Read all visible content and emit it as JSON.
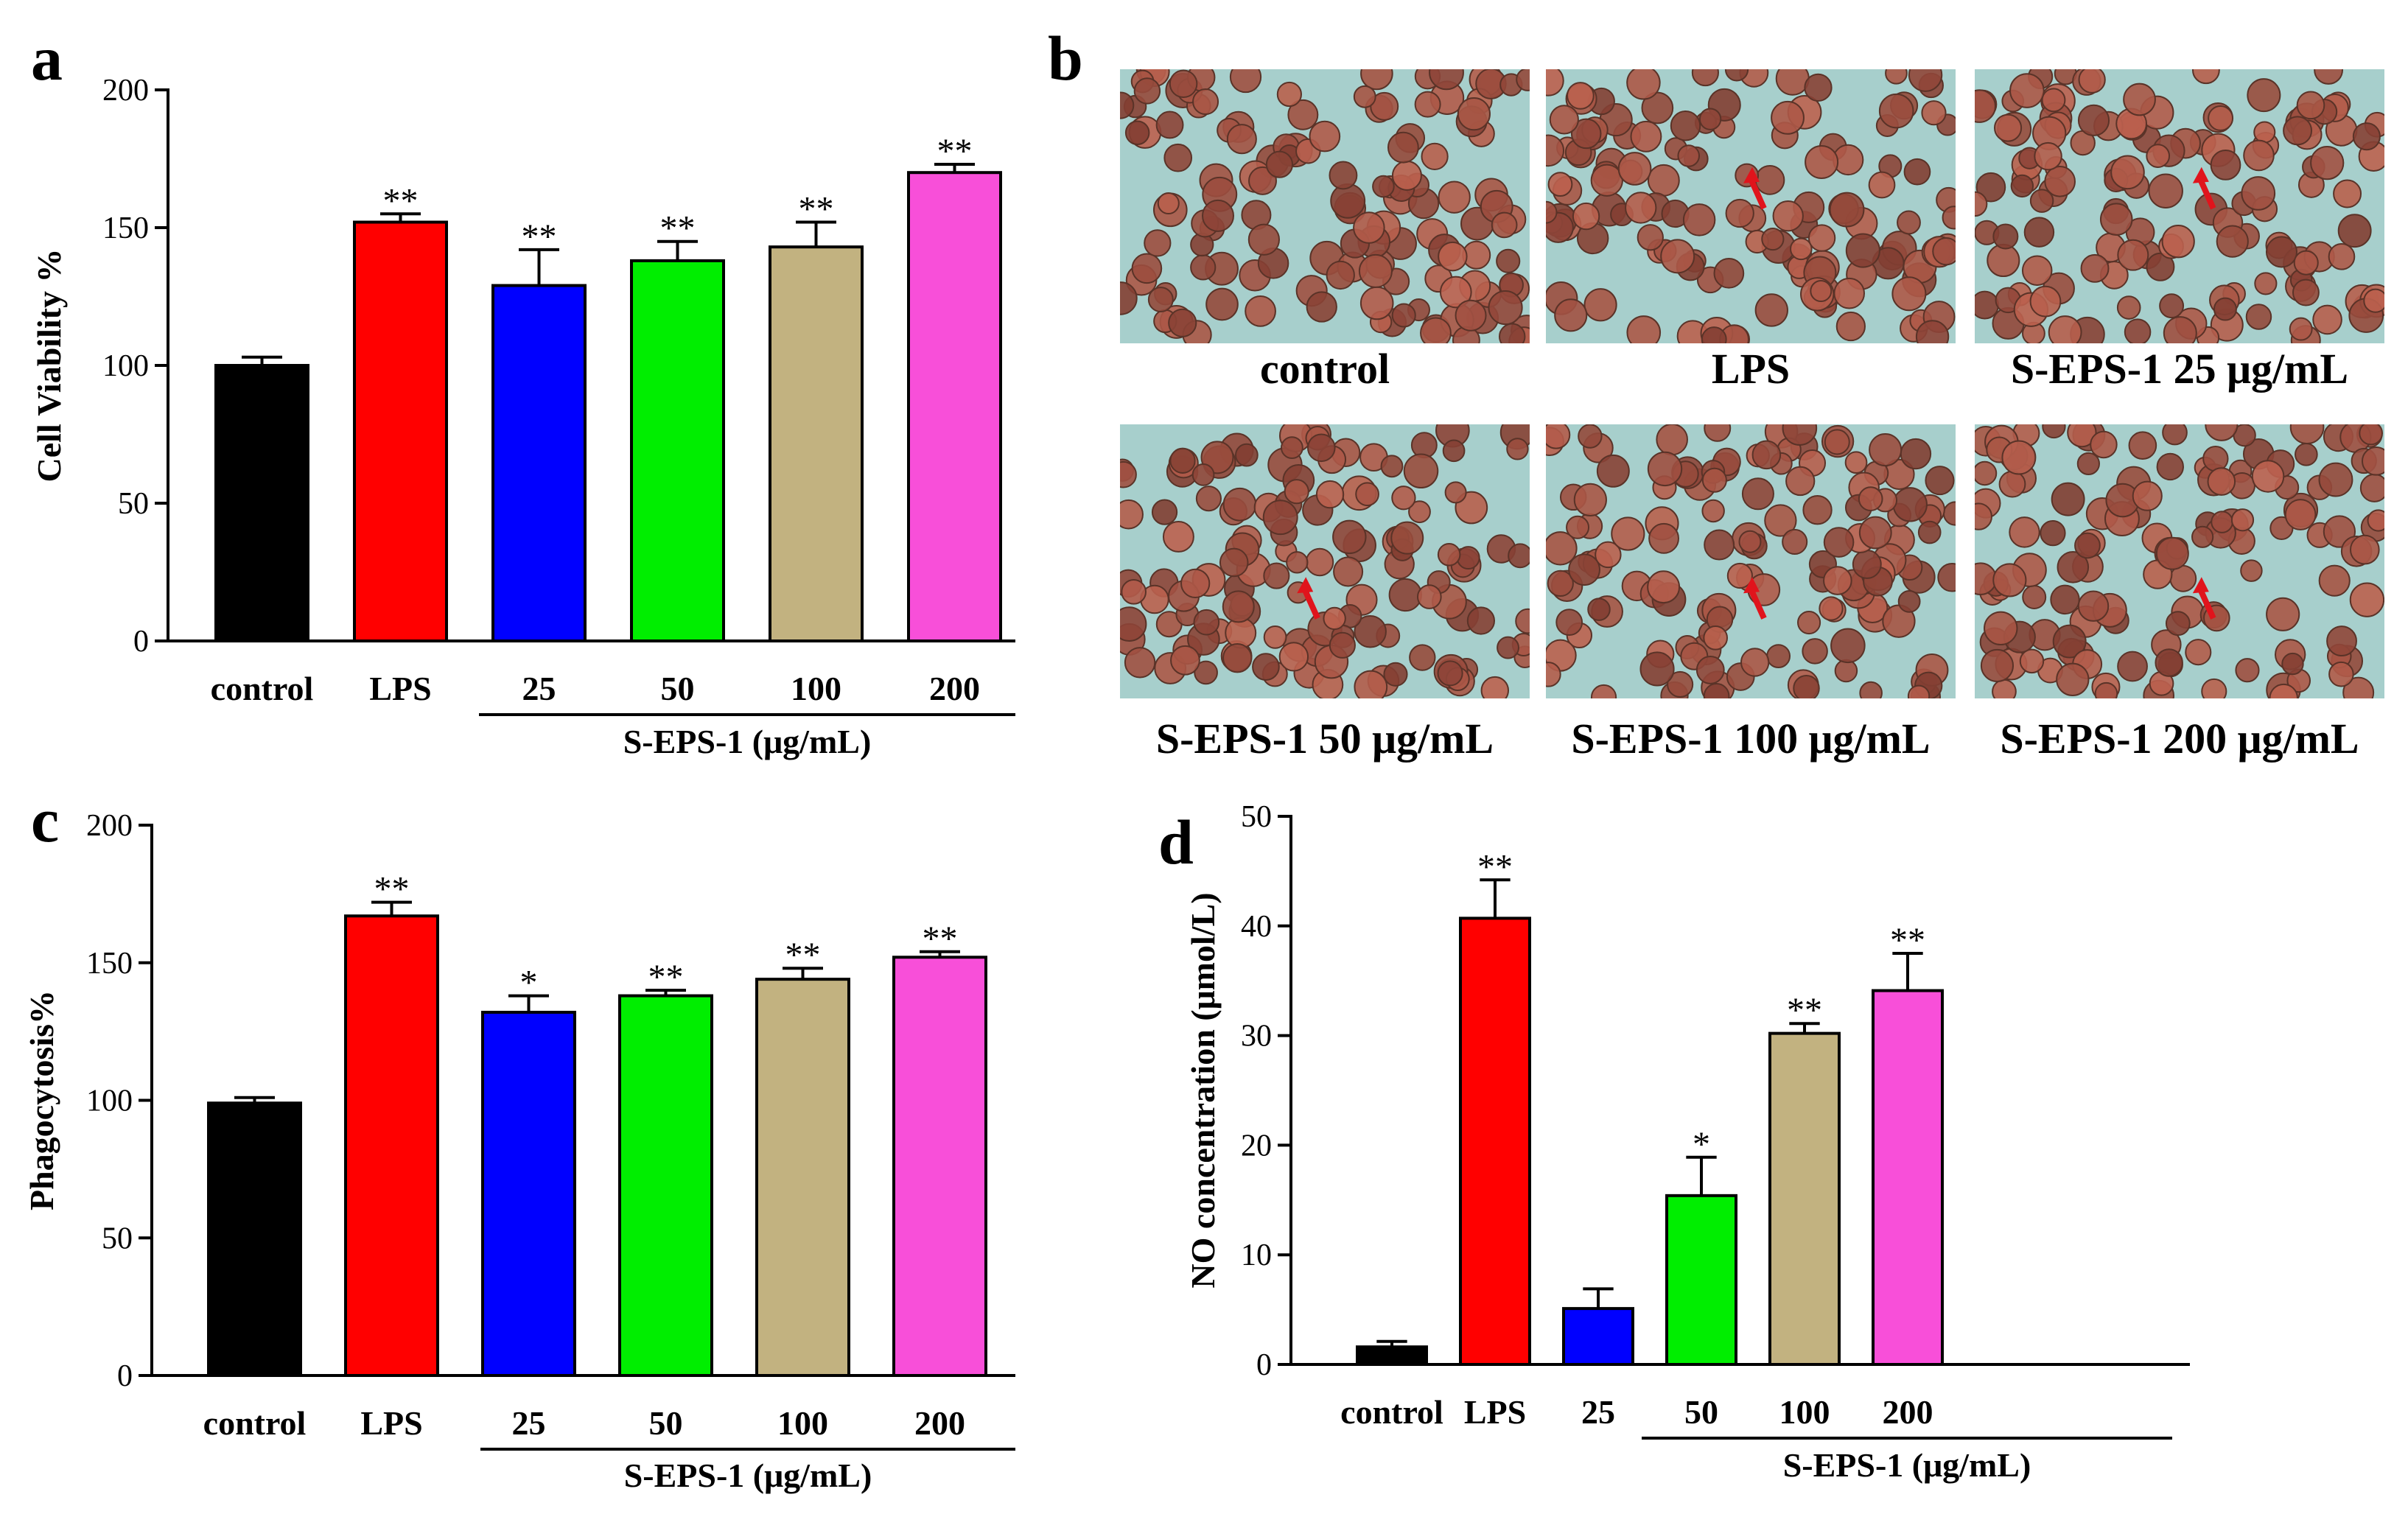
{
  "figure": {
    "panel_labels": [
      "a",
      "b",
      "c",
      "d"
    ],
    "micrograph_captions": [
      "control",
      "LPS",
      "S-EPS-1 25 μg/mL",
      "S-EPS-1 50 μg/mL",
      "S-EPS-1 100 μg/mL",
      "S-EPS-1 200 μg/mL"
    ],
    "micrograph_arrows": [
      false,
      true,
      true,
      true,
      true,
      true
    ]
  },
  "colors": {
    "control": "#000000",
    "LPS": "#ff0000",
    "25": "#0000ff",
    "50": "#00ee00",
    "100": "#c2b280",
    "200": "#f84fd9",
    "arrow": "#e0141c",
    "cell": "#8e5a47",
    "background": "#a7cfcc"
  },
  "chart_data": [
    {
      "panel": "a",
      "type": "bar",
      "categories": [
        "control",
        "LPS",
        "25",
        "50",
        "100",
        "200"
      ],
      "group_label": "S-EPS-1 (μg/mL)",
      "values": [
        100,
        152,
        129,
        138,
        143,
        170
      ],
      "errors": [
        3,
        3,
        13,
        7,
        9,
        3
      ],
      "significance": [
        "",
        "**",
        "**",
        "**",
        "**",
        "**"
      ],
      "ylabel": "Cell Viability %",
      "ylim": [
        0,
        200
      ],
      "yticks": [
        0,
        50,
        100,
        150,
        200
      ]
    },
    {
      "panel": "c",
      "type": "bar",
      "categories": [
        "control",
        "LPS",
        "25",
        "50",
        "100",
        "200"
      ],
      "group_label": "S-EPS-1 (μg/mL)",
      "values": [
        99,
        167,
        132,
        138,
        144,
        152
      ],
      "errors": [
        2,
        5,
        6,
        2,
        4,
        2
      ],
      "significance": [
        "",
        "**",
        "*",
        "**",
        "**",
        "**"
      ],
      "ylabel": "Phagocytosis%",
      "ylim": [
        0,
        200
      ],
      "yticks": [
        0,
        50,
        100,
        150,
        200
      ]
    },
    {
      "panel": "d",
      "type": "bar",
      "categories": [
        "control",
        "LPS",
        "25",
        "50",
        "100",
        "200"
      ],
      "group_label": "S-EPS-1 (μg/mL)",
      "values": [
        1.6,
        40.7,
        5.1,
        15.4,
        30.2,
        34.1
      ],
      "errors": [
        0.5,
        3.5,
        1.8,
        3.5,
        0.9,
        3.4
      ],
      "significance": [
        "",
        "**",
        "",
        "*",
        "**",
        "**"
      ],
      "ylabel": "NO concentration (μmol/L)",
      "ylim": [
        0,
        50
      ],
      "yticks": [
        0,
        10,
        20,
        30,
        40,
        50
      ]
    }
  ]
}
